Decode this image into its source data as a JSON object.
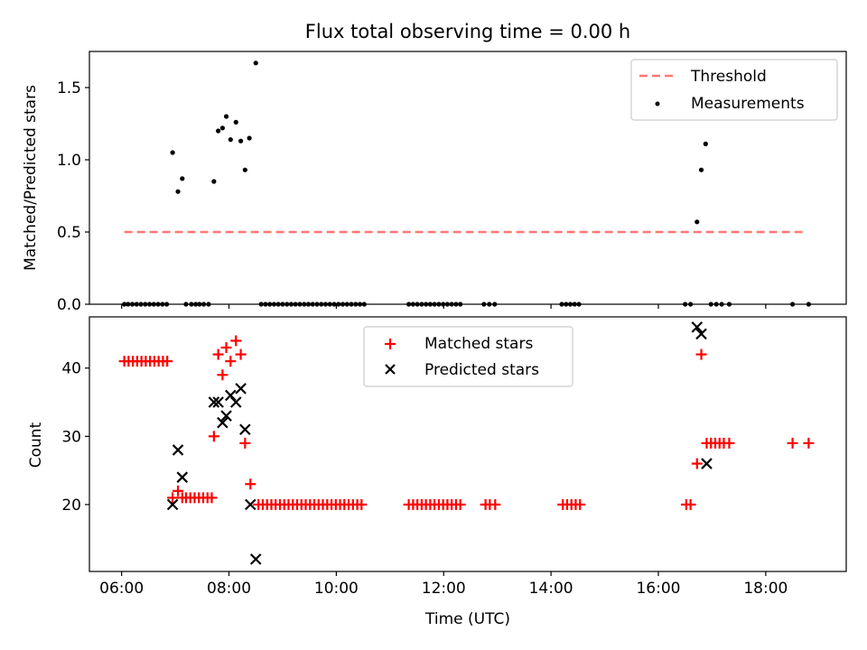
{
  "chart_data": [
    {
      "type": "scatter",
      "title": "Flux total observing time = 0.00 h",
      "xlabel": "",
      "ylabel": "Matched/Predicted stars",
      "xlim": [
        5.4,
        19.5
      ],
      "ylim": [
        0.0,
        1.75
      ],
      "xticks": [
        6,
        8,
        10,
        12,
        14,
        16,
        18
      ],
      "yticks": [
        0.0,
        0.5,
        1.0,
        1.5
      ],
      "ytick_labels": [
        "0.0",
        "0.5",
        "1.0",
        "1.5"
      ],
      "legend_position": "upper right",
      "threshold": {
        "name": "Threshold",
        "value": 0.5,
        "x_range": [
          6.05,
          18.75
        ],
        "color": "#ff7777"
      },
      "measurements": {
        "name": "Measurements",
        "color": "#000000",
        "points": [
          [
            6.05,
            0
          ],
          [
            6.12,
            0
          ],
          [
            6.2,
            0
          ],
          [
            6.28,
            0
          ],
          [
            6.36,
            0
          ],
          [
            6.44,
            0
          ],
          [
            6.52,
            0
          ],
          [
            6.6,
            0
          ],
          [
            6.68,
            0
          ],
          [
            6.76,
            0
          ],
          [
            6.84,
            0
          ],
          [
            6.95,
            1.05
          ],
          [
            7.05,
            0.78
          ],
          [
            7.13,
            0.87
          ],
          [
            7.2,
            0
          ],
          [
            7.3,
            0
          ],
          [
            7.38,
            0
          ],
          [
            7.45,
            0
          ],
          [
            7.53,
            0
          ],
          [
            7.62,
            0
          ],
          [
            7.72,
            0.85
          ],
          [
            7.8,
            1.2
          ],
          [
            7.88,
            1.22
          ],
          [
            7.95,
            1.3
          ],
          [
            8.03,
            1.14
          ],
          [
            8.13,
            1.26
          ],
          [
            8.22,
            1.13
          ],
          [
            8.3,
            0.93
          ],
          [
            8.38,
            1.15
          ],
          [
            8.5,
            1.67
          ],
          [
            8.6,
            0
          ],
          [
            8.68,
            0
          ],
          [
            8.76,
            0
          ],
          [
            8.84,
            0
          ],
          [
            8.92,
            0
          ],
          [
            9.0,
            0
          ],
          [
            9.08,
            0
          ],
          [
            9.16,
            0
          ],
          [
            9.24,
            0
          ],
          [
            9.32,
            0
          ],
          [
            9.4,
            0
          ],
          [
            9.48,
            0
          ],
          [
            9.56,
            0
          ],
          [
            9.64,
            0
          ],
          [
            9.72,
            0
          ],
          [
            9.8,
            0
          ],
          [
            9.88,
            0
          ],
          [
            9.96,
            0
          ],
          [
            10.04,
            0
          ],
          [
            10.12,
            0
          ],
          [
            10.2,
            0
          ],
          [
            10.28,
            0
          ],
          [
            10.36,
            0
          ],
          [
            10.44,
            0
          ],
          [
            10.52,
            0
          ],
          [
            11.35,
            0
          ],
          [
            11.43,
            0
          ],
          [
            11.51,
            0
          ],
          [
            11.59,
            0
          ],
          [
            11.67,
            0
          ],
          [
            11.75,
            0
          ],
          [
            11.83,
            0
          ],
          [
            11.91,
            0
          ],
          [
            11.99,
            0
          ],
          [
            12.07,
            0
          ],
          [
            12.15,
            0
          ],
          [
            12.23,
            0
          ],
          [
            12.31,
            0
          ],
          [
            12.75,
            0
          ],
          [
            12.85,
            0
          ],
          [
            12.95,
            0
          ],
          [
            14.2,
            0
          ],
          [
            14.28,
            0
          ],
          [
            14.36,
            0
          ],
          [
            14.44,
            0
          ],
          [
            14.52,
            0
          ],
          [
            16.5,
            0
          ],
          [
            16.6,
            0
          ],
          [
            16.72,
            0.57
          ],
          [
            16.8,
            0.93
          ],
          [
            16.88,
            1.11
          ],
          [
            16.98,
            0
          ],
          [
            17.08,
            0
          ],
          [
            17.18,
            0
          ],
          [
            17.32,
            0
          ],
          [
            18.5,
            0
          ],
          [
            18.8,
            0
          ]
        ]
      }
    },
    {
      "type": "scatter",
      "title": "",
      "xlabel": "Time (UTC)",
      "ylabel": "Count",
      "xlim": [
        5.4,
        19.5
      ],
      "ylim": [
        10.2,
        47.5
      ],
      "xticks": [
        6,
        8,
        10,
        12,
        14,
        16,
        18
      ],
      "xtick_labels": [
        "06:00",
        "08:00",
        "10:00",
        "12:00",
        "14:00",
        "16:00",
        "18:00"
      ],
      "yticks": [
        20,
        30,
        40
      ],
      "ytick_labels": [
        "20",
        "30",
        "40"
      ],
      "legend_position": "upper center",
      "series": [
        {
          "name": "Matched stars",
          "marker": "+",
          "color": "#ff0000",
          "points": [
            [
              6.05,
              41
            ],
            [
              6.13,
              41
            ],
            [
              6.21,
              41
            ],
            [
              6.29,
              41
            ],
            [
              6.37,
              41
            ],
            [
              6.45,
              41
            ],
            [
              6.53,
              41
            ],
            [
              6.61,
              41
            ],
            [
              6.69,
              41
            ],
            [
              6.77,
              41
            ],
            [
              6.85,
              41
            ],
            [
              6.95,
              21
            ],
            [
              7.05,
              22
            ],
            [
              7.13,
              21
            ],
            [
              7.2,
              21
            ],
            [
              7.28,
              21
            ],
            [
              7.36,
              21
            ],
            [
              7.44,
              21
            ],
            [
              7.52,
              21
            ],
            [
              7.6,
              21
            ],
            [
              7.68,
              21
            ],
            [
              7.72,
              30
            ],
            [
              7.8,
              42
            ],
            [
              7.88,
              39
            ],
            [
              7.95,
              43
            ],
            [
              8.03,
              41
            ],
            [
              8.13,
              44
            ],
            [
              8.22,
              42
            ],
            [
              8.3,
              29
            ],
            [
              8.4,
              23
            ],
            [
              8.55,
              20
            ],
            [
              8.63,
              20
            ],
            [
              8.71,
              20
            ],
            [
              8.79,
              20
            ],
            [
              8.87,
              20
            ],
            [
              8.95,
              20
            ],
            [
              9.03,
              20
            ],
            [
              9.11,
              20
            ],
            [
              9.19,
              20
            ],
            [
              9.27,
              20
            ],
            [
              9.35,
              20
            ],
            [
              9.43,
              20
            ],
            [
              9.51,
              20
            ],
            [
              9.59,
              20
            ],
            [
              9.67,
              20
            ],
            [
              9.75,
              20
            ],
            [
              9.83,
              20
            ],
            [
              9.91,
              20
            ],
            [
              9.99,
              20
            ],
            [
              10.07,
              20
            ],
            [
              10.15,
              20
            ],
            [
              10.23,
              20
            ],
            [
              10.31,
              20
            ],
            [
              10.39,
              20
            ],
            [
              10.47,
              20
            ],
            [
              11.35,
              20
            ],
            [
              11.43,
              20
            ],
            [
              11.51,
              20
            ],
            [
              11.59,
              20
            ],
            [
              11.67,
              20
            ],
            [
              11.75,
              20
            ],
            [
              11.83,
              20
            ],
            [
              11.91,
              20
            ],
            [
              11.99,
              20
            ],
            [
              12.07,
              20
            ],
            [
              12.15,
              20
            ],
            [
              12.23,
              20
            ],
            [
              12.31,
              20
            ],
            [
              12.78,
              20
            ],
            [
              12.86,
              20
            ],
            [
              12.96,
              20
            ],
            [
              14.22,
              20
            ],
            [
              14.3,
              20
            ],
            [
              14.38,
              20
            ],
            [
              14.46,
              20
            ],
            [
              14.54,
              20
            ],
            [
              16.52,
              20
            ],
            [
              16.6,
              20
            ],
            [
              16.72,
              26
            ],
            [
              16.8,
              42
            ],
            [
              16.9,
              29
            ],
            [
              16.98,
              29
            ],
            [
              17.06,
              29
            ],
            [
              17.14,
              29
            ],
            [
              17.22,
              29
            ],
            [
              17.32,
              29
            ],
            [
              18.5,
              29
            ],
            [
              18.8,
              29
            ]
          ]
        },
        {
          "name": "Predicted stars",
          "marker": "x",
          "color": "#000000",
          "points": [
            [
              6.95,
              20
            ],
            [
              7.05,
              28
            ],
            [
              7.13,
              24
            ],
            [
              7.72,
              35
            ],
            [
              7.8,
              35
            ],
            [
              7.88,
              32
            ],
            [
              7.95,
              33
            ],
            [
              8.03,
              36
            ],
            [
              8.13,
              35
            ],
            [
              8.22,
              37
            ],
            [
              8.3,
              31
            ],
            [
              8.4,
              20
            ],
            [
              8.5,
              12
            ],
            [
              16.72,
              46
            ],
            [
              16.8,
              45
            ],
            [
              16.9,
              26
            ]
          ]
        }
      ]
    }
  ]
}
